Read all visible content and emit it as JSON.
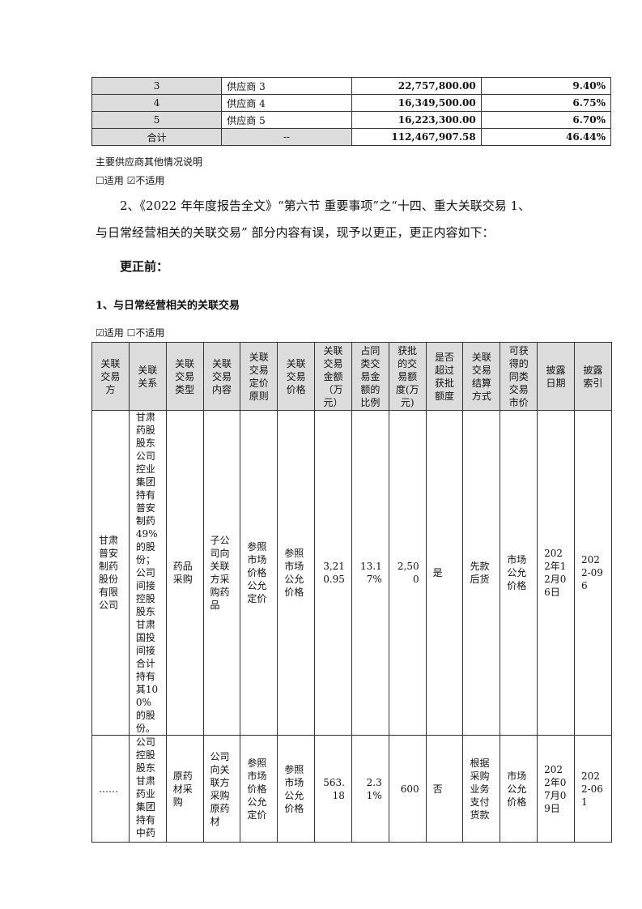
{
  "supplier_table": {
    "rows": [
      [
        "3",
        "供应商 3",
        "22,757,800.00",
        "9.40%"
      ],
      [
        "4",
        "供应商 4",
        "16,349,500.00",
        "6.75%"
      ],
      [
        "5",
        "供应商 5",
        "16,223,300.00",
        "6.70%"
      ],
      [
        "合计",
        "--",
        "112,467,907.58",
        "46.44%"
      ]
    ]
  },
  "supplier_note": "主要供应商其他情况说明",
  "supplier_applicable": "☐适用 ☑不适用",
  "para1": "2、《2022 年年度报告全文》“第六节 重要事项”之“十四、重大关联交易 1、",
  "para2": "与日常经营相关的关联交易” 部分内容有误，现予以更正，更正内容如下：",
  "before_title": "更正前：",
  "section_title": "1、与日常经营相关的关联交易",
  "section_applicable": "☑适用 ☐不适用",
  "related_table": {
    "headers": [
      "关联交易方",
      "关联关系",
      "关联交易类型",
      "关联交易内容",
      "关联交易定价原则",
      "关联交易价格",
      "关联交易金额（万元）",
      "占同类交易金额的比例",
      "获批的交易额度(万元)",
      "是否超过获批额度",
      "关联交易结算方式",
      "可获得的同类交易市价",
      "披露日期",
      "披露索引"
    ],
    "rows": [
      [
        "甘肃普安制药股份有限公司",
        "甘肃药股股东公司控业集团持有普安制药49%的股份；公司间接控股股东甘肃国投间接合计持有其100%的股份。",
        "药品采购",
        "子公司向关联方采购药品",
        "参照市场价格公允定价",
        "参照市场公允价格",
        "3,210.95",
        "13.17%",
        "2,500",
        "是",
        "先款后货",
        "市场公允价格",
        "2022年12月06日",
        "2022-096"
      ],
      [
        "……",
        "公司控股股东甘肃药业集团持有中药",
        "原药材采购",
        "公司向关联方采购原药材",
        "参照市场价格公允定价",
        "参照市场公允价格",
        "563.18",
        "2.31%",
        "600",
        "否",
        "根据采购业务支付货款",
        "市场公允价格",
        "2022年07月09日",
        "2022-061"
      ]
    ]
  }
}
